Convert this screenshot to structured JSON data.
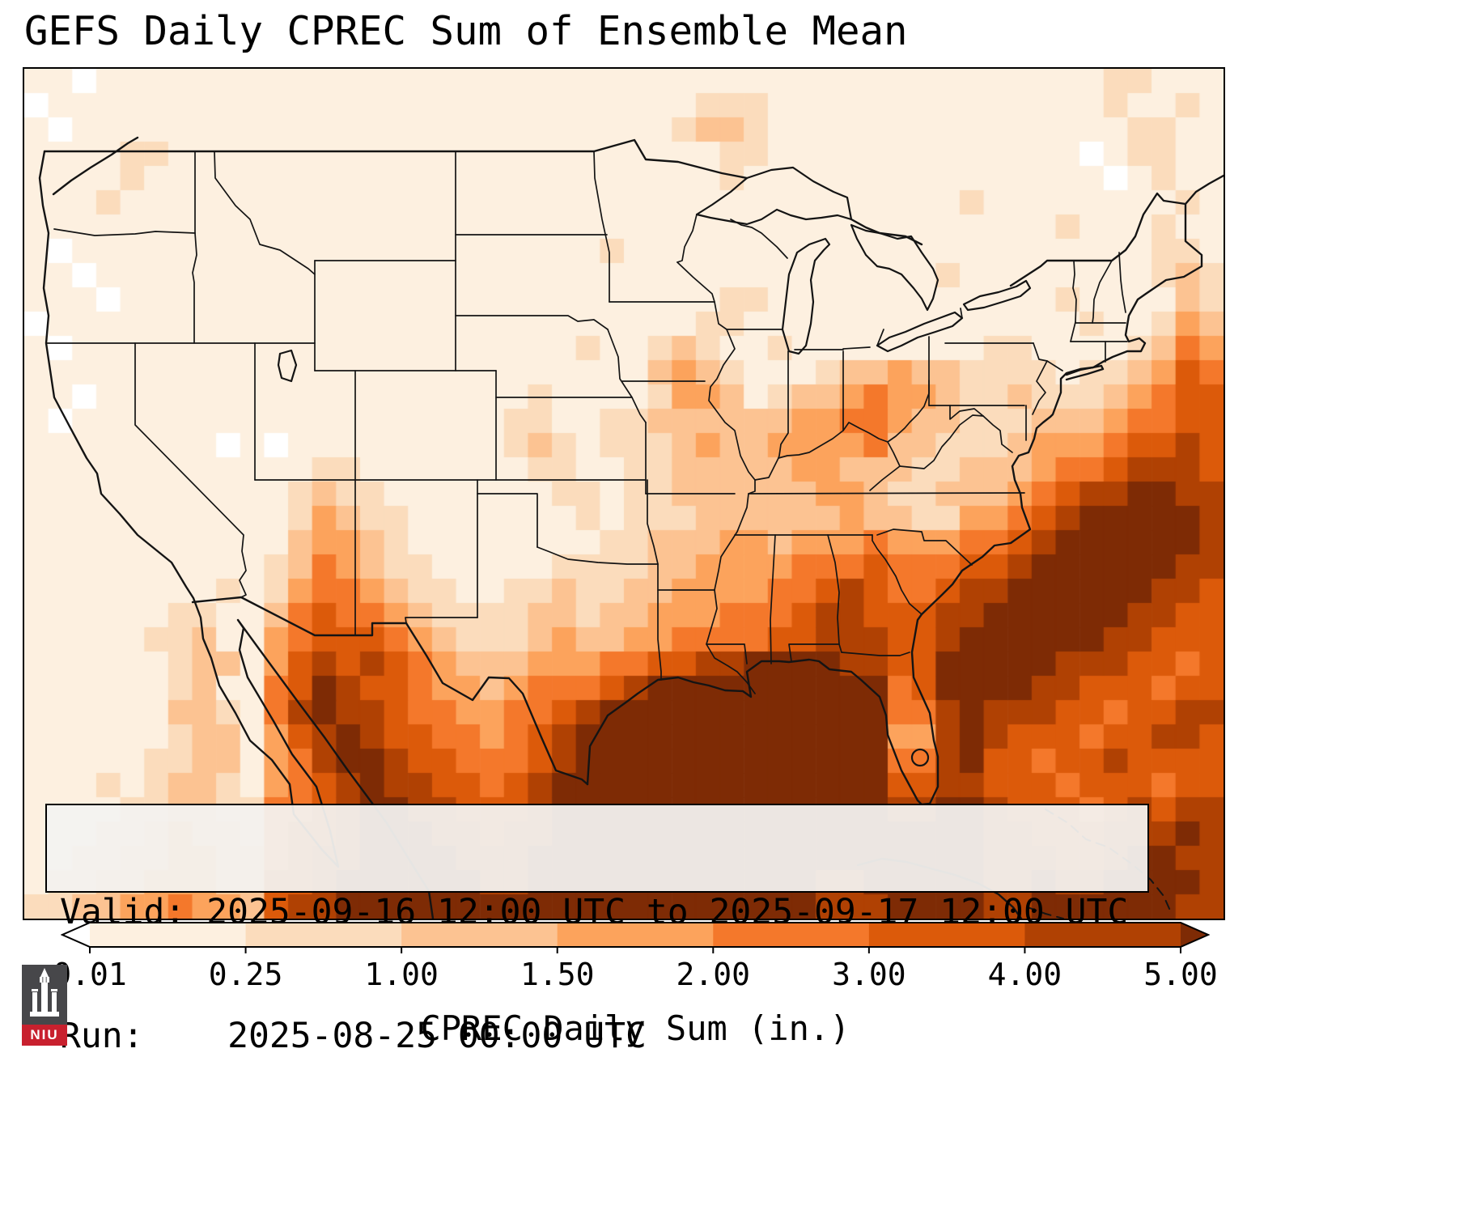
{
  "title": "GEFS Daily CPREC Sum of Ensemble Mean",
  "info_box": {
    "line1": "Valid: 2025-09-16 12:00 UTC to 2025-09-17 12:00 UTC",
    "line2": "Run:    2025-08-25 00:00 UTC"
  },
  "colorbar": {
    "label": "CPREC Daily Sum (in.)",
    "ticks": [
      "0.01",
      "0.25",
      "1.00",
      "1.50",
      "2.00",
      "3.00",
      "4.00",
      "5.00"
    ],
    "segment_colors": [
      "#fdf0e0",
      "#fbdcbc",
      "#fcc392",
      "#fca35c",
      "#f4782b",
      "#dc5a0a",
      "#b04103"
    ],
    "under_color": "#ffffff",
    "over_color": "#7e2b05"
  },
  "logo": {
    "text": "NIU",
    "red": "#c8202e",
    "dark": "#47474a"
  },
  "chart_data": {
    "type": "heatmap",
    "title": "GEFS Daily CPREC Sum of Ensemble Mean",
    "units": "in.",
    "valid": "2025-09-16 12:00 UTC to 2025-09-17 12:00 UTC",
    "run": "2025-08-25 00:00 UTC",
    "colormap": "Oranges",
    "levels": [
      0.01,
      0.25,
      1.0,
      1.5,
      2.0,
      3.0,
      4.0,
      5.0
    ],
    "level_colors": [
      "#ffffff",
      "#fdf0e0",
      "#fbdcbc",
      "#fcc392",
      "#fca35c",
      "#f4782b",
      "#dc5a0a",
      "#b04103",
      "#7e2b05"
    ],
    "grid": {
      "cols": 50,
      "rows": 35,
      "encoding": "each digit = precipitation bin: 0 <0.01, 1 0.01-0.25, 2 0.25-1.00, 3 1.00-1.50, 4 1.50-2.00, 5 2.00-3.00, 6 3.00-4.00, 7 4.00-5.00, 8 >5.00 (in.)",
      "rows_data": [
        "11011111111111111111111111111111111111111111122111",
        "01111111111111111111111111112221111111111111121121",
        "10111111111111111111111111123321111111111111112211",
        "11112211111111111111111111111221111111111111012211",
        "11112111111111111111111111111211111111111111101211",
        "11121111111111111111111111111111111111121111111121",
        "11111111111111111111111111111111111111111112111211",
        "10111111111111111111111121111111111111111111111221",
        "11011111111111111111111111111111111111211111111232",
        "11101111111111111111111111111221111111111112111132",
        "01111111111111111111111111112211111111111111211243",
        "10111111111111111111111211232112111111112211112354",
        "11111111111111111111111111343211123343322221223465",
        "11011111111111111111121111244312334544322322234566",
        "10111111111111111111221122333333445543322233345566",
        "11111111010111111111232122234334444533222344456676",
        "11111111111122111111122112233333443332233345567776",
        "11111111111232211111112212233333344322333456778877",
        "11111111111243221111111212223333334332244567888887",
        "11111111111344321111111122333443444544455678888887",
        "11111111112354322111112222334444555655566788888877",
        "11111111212455432211223223344445567655677888888776",
        "11111122113565543222233233444555677666778888887766",
        "11111223114566654322234334455556677766788888877666",
        "11111123314676765433344455667788887766888887776656",
        "11111123115687665443455567888888888856888877666566",
        "11111133215787765544556788888888888855787776656677",
        "11111123314678766554567888888888888844787666566776",
        "11111223314578876655567888888888888855786656676666",
        "11121233214567877665678888888888888866776665666566",
        "11112233225567887766678888888888888877887666567677",
        "11122343325667888776778888888888888888887766677787",
        "11223344335677888877788888888888888888887776678877",
        "12233444336678888887788888888888877888887787788887",
        "22334454436778888888888888888888877788887788888877"
      ]
    }
  }
}
